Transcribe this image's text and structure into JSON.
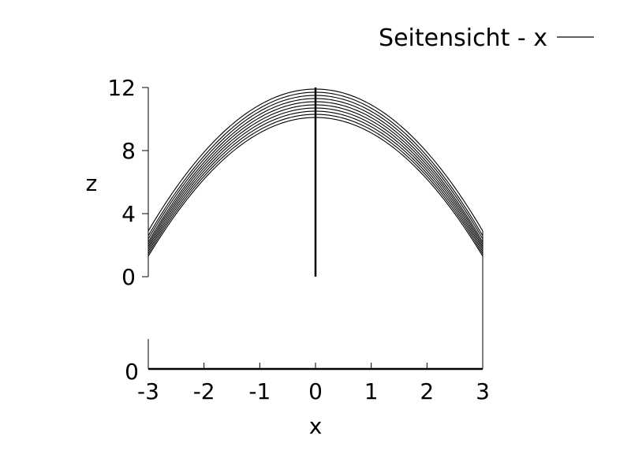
{
  "chart_data": {
    "type": "line",
    "legend": {
      "label": "Seitensicht - x",
      "placement": "top-right"
    },
    "xlabel": "x",
    "ylabel": "z",
    "xlim": [
      -3,
      3
    ],
    "ylim": [
      0,
      12
    ],
    "x_ticks": [
      "-3",
      "-2",
      "-1",
      "0",
      "1",
      "2",
      "3"
    ],
    "z_ticks": [
      "0",
      "4",
      "8",
      "12"
    ],
    "bottom_axis_tick": "0",
    "grid": false,
    "color": "#000000",
    "curve_peaks_z": [
      10.1,
      10.3,
      10.5,
      10.7,
      10.9,
      11.1,
      11.3,
      11.5,
      11.7,
      11.9
    ],
    "curve_edge_z": [
      1.3,
      1.45,
      1.6,
      1.75,
      1.9,
      2.05,
      2.2,
      2.4,
      2.6,
      2.9
    ],
    "center_post": {
      "x": 0,
      "z_from": 0,
      "z_to": 12
    }
  }
}
